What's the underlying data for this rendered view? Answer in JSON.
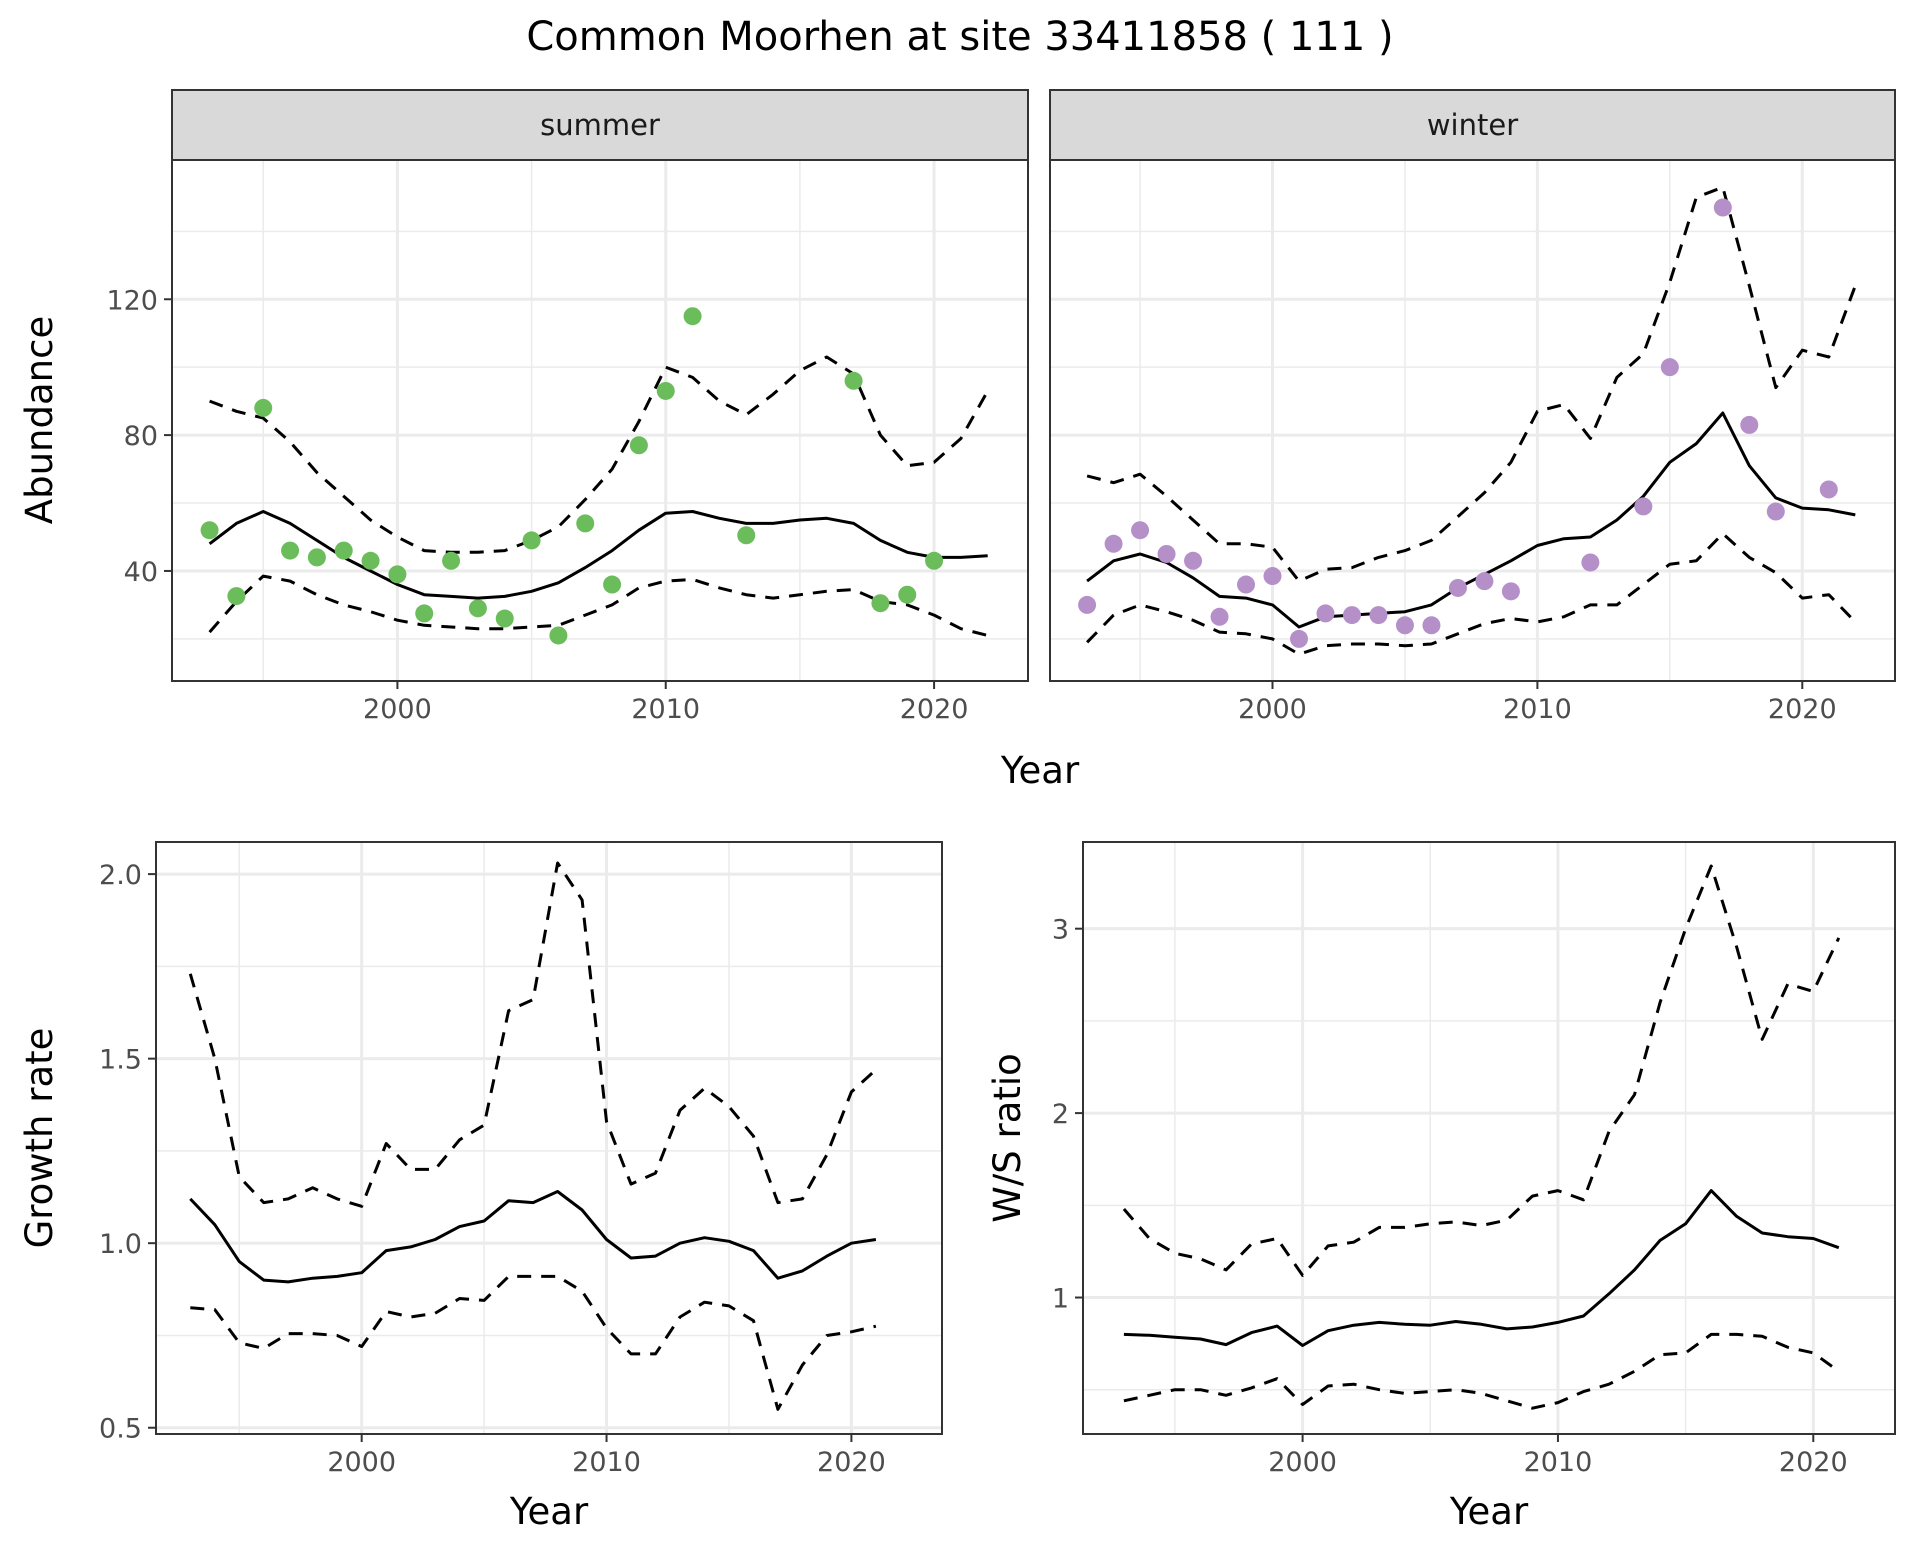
{
  "title": "Common Moorhen at site 33411858 ( 111 )",
  "colors": {
    "summer": "#6BBD5B",
    "winter": "#B58FC8",
    "line": "#000000",
    "strip": "#D9D9D9",
    "grid": "#EBEBEB"
  },
  "chart_data": [
    {
      "type": "line",
      "panel": "summer",
      "strip_label": "summer",
      "xlabel": "Year",
      "ylabel": "Abundance",
      "xlim": [
        1991.6,
        2023.5
      ],
      "ylim": [
        7.6,
        161
      ],
      "xticks": [
        2000,
        2010,
        2020
      ],
      "yticks": [
        40,
        80,
        120
      ],
      "grid": true,
      "x": [
        1993,
        1994,
        1995,
        1996,
        1997,
        1998,
        1999,
        2000,
        2001,
        2002,
        2003,
        2004,
        2005,
        2006,
        2007,
        2008,
        2009,
        2010,
        2011,
        2012,
        2013,
        2014,
        2015,
        2016,
        2017,
        2018,
        2019,
        2020,
        2021,
        2022
      ],
      "series": [
        {
          "name": "mean",
          "style": "solid",
          "values": [
            48,
            54,
            57.5,
            54,
            49,
            44,
            40,
            36,
            33,
            32.5,
            32,
            32.5,
            34,
            36.5,
            41,
            46,
            52,
            57,
            57.5,
            55.5,
            54,
            54,
            55,
            55.5,
            54,
            49,
            45.5,
            44,
            44,
            44.5
          ]
        },
        {
          "name": "upper",
          "style": "dashed",
          "values": [
            90,
            87,
            85,
            78,
            69,
            62,
            55,
            50,
            46,
            45.5,
            45.5,
            46,
            49,
            53,
            61,
            70,
            84,
            100,
            97,
            90,
            86,
            92,
            99,
            103,
            98,
            80,
            71,
            72,
            79,
            93
          ]
        },
        {
          "name": "lower",
          "style": "dashed",
          "values": [
            22,
            31,
            38.5,
            37,
            33,
            30,
            28,
            25.5,
            24,
            23.5,
            23,
            23,
            23.5,
            24,
            27,
            30,
            35,
            37,
            37.5,
            35,
            33,
            32,
            33,
            34,
            34.5,
            31,
            30,
            27,
            23,
            21
          ]
        }
      ],
      "points": {
        "x": [
          1993,
          1994,
          1995,
          1996,
          1997,
          1998,
          1999,
          2000,
          2001,
          2002,
          2003,
          2004,
          2005,
          2006,
          2007,
          2008,
          2009,
          2010,
          2011,
          2013,
          2017,
          2018,
          2019,
          2020
        ],
        "y": [
          52,
          32.6,
          88,
          46,
          44,
          46,
          43,
          39,
          27.5,
          43,
          29,
          26,
          49,
          21,
          54,
          36,
          77,
          93,
          115,
          50.5,
          96,
          30.5,
          33,
          43
        ]
      }
    },
    {
      "type": "line",
      "panel": "winter",
      "strip_label": "winter",
      "xlabel": "Year",
      "ylabel": "Abundance",
      "xlim": [
        1991.6,
        2023.5
      ],
      "ylim": [
        7.6,
        161
      ],
      "xticks": [
        2000,
        2010,
        2020
      ],
      "yticks": [
        40,
        80,
        120
      ],
      "grid": true,
      "x": [
        1993,
        1994,
        1995,
        1996,
        1997,
        1998,
        1999,
        2000,
        2001,
        2002,
        2003,
        2004,
        2005,
        2006,
        2007,
        2008,
        2009,
        2010,
        2011,
        2012,
        2013,
        2014,
        2015,
        2016,
        2017,
        2018,
        2019,
        2020,
        2021,
        2022
      ],
      "series": [
        {
          "name": "mean",
          "style": "solid",
          "values": [
            37,
            43,
            45,
            42.5,
            38,
            32.5,
            32,
            30,
            23.5,
            26.5,
            27,
            27.5,
            28,
            30,
            35,
            39,
            43,
            47.5,
            49.5,
            50,
            55,
            62,
            72,
            77.5,
            86.5,
            71,
            61.5,
            58.5,
            58,
            56.5
          ]
        },
        {
          "name": "upper",
          "style": "dashed",
          "values": [
            68,
            66,
            68.5,
            62,
            55,
            48,
            48,
            47,
            37,
            40.5,
            41,
            44,
            46,
            49,
            56,
            63,
            72,
            87,
            89,
            79,
            97,
            104,
            125,
            150,
            153,
            124,
            94,
            105,
            103,
            124
          ]
        },
        {
          "name": "lower",
          "style": "dashed",
          "values": [
            19,
            27,
            30,
            28,
            25.5,
            22,
            21.5,
            20,
            15.5,
            18,
            18.5,
            18.5,
            18,
            18.5,
            21.5,
            24.5,
            26,
            25,
            26.5,
            30,
            30,
            36,
            42,
            43,
            51,
            44,
            39.5,
            32,
            33,
            25
          ]
        }
      ],
      "points": {
        "x": [
          1993,
          1994,
          1995,
          1996,
          1997,
          1998,
          1999,
          2000,
          2001,
          2002,
          2003,
          2004,
          2005,
          2006,
          2007,
          2008,
          2009,
          2012,
          2014,
          2015,
          2017,
          2018,
          2019,
          2021
        ],
        "y": [
          30,
          48,
          52,
          45,
          43,
          26.5,
          36,
          38.5,
          20,
          27.5,
          27,
          27,
          24,
          24,
          35,
          37,
          34,
          42.5,
          59,
          100,
          147,
          83,
          57.5,
          64
        ]
      }
    },
    {
      "type": "line",
      "panel": "growth",
      "xlabel": "Year",
      "ylabel": "Growth rate",
      "xlim": [
        1991.6,
        2023.7
      ],
      "ylim": [
        0.483,
        2.087
      ],
      "xticks": [
        2000,
        2010,
        2020
      ],
      "yticks": [
        0.5,
        1.0,
        1.5,
        2.0
      ],
      "ytick_labels": [
        "0.5",
        "1.0",
        "1.5",
        "2.0"
      ],
      "grid": true,
      "x": [
        1993,
        1994,
        1995,
        1996,
        1997,
        1998,
        1999,
        2000,
        2001,
        2002,
        2003,
        2004,
        2005,
        2006,
        2007,
        2008,
        2009,
        2010,
        2011,
        2012,
        2013,
        2014,
        2015,
        2016,
        2017,
        2018,
        2019,
        2020,
        2021
      ],
      "series": [
        {
          "name": "mean",
          "style": "solid",
          "values": [
            1.12,
            1.05,
            0.95,
            0.9,
            0.895,
            0.905,
            0.91,
            0.92,
            0.98,
            0.99,
            1.01,
            1.045,
            1.06,
            1.115,
            1.11,
            1.14,
            1.09,
            1.01,
            0.96,
            0.965,
            1.0,
            1.015,
            1.005,
            0.98,
            0.905,
            0.925,
            0.965,
            1.0,
            1.01
          ]
        },
        {
          "name": "upper",
          "style": "dashed",
          "values": [
            1.73,
            1.5,
            1.18,
            1.11,
            1.12,
            1.15,
            1.12,
            1.1,
            1.27,
            1.2,
            1.2,
            1.28,
            1.32,
            1.63,
            1.66,
            2.03,
            1.93,
            1.33,
            1.16,
            1.19,
            1.36,
            1.42,
            1.37,
            1.29,
            1.11,
            1.12,
            1.24,
            1.41,
            1.47
          ]
        },
        {
          "name": "lower",
          "style": "dashed",
          "values": [
            0.825,
            0.82,
            0.73,
            0.715,
            0.755,
            0.755,
            0.75,
            0.72,
            0.815,
            0.8,
            0.81,
            0.85,
            0.845,
            0.91,
            0.91,
            0.91,
            0.87,
            0.77,
            0.7,
            0.7,
            0.8,
            0.84,
            0.83,
            0.79,
            0.55,
            0.67,
            0.75,
            0.76,
            0.775
          ]
        }
      ]
    },
    {
      "type": "line",
      "panel": "ratio",
      "xlabel": "Year",
      "ylabel": "W/S ratio",
      "xlim": [
        1991.4,
        2023.2
      ],
      "ylim": [
        0.26,
        3.47
      ],
      "xticks": [
        2000,
        2010,
        2020
      ],
      "yticks": [
        1,
        2,
        3
      ],
      "ytick_labels": [
        "1",
        "2",
        "3"
      ],
      "grid": true,
      "x": [
        1993,
        1994,
        1995,
        1996,
        1997,
        1998,
        1999,
        2000,
        2001,
        2002,
        2003,
        2004,
        2005,
        2006,
        2007,
        2008,
        2009,
        2010,
        2011,
        2012,
        2013,
        2014,
        2015,
        2016,
        2017,
        2018,
        2019,
        2020,
        2021
      ],
      "series": [
        {
          "name": "mean",
          "style": "solid",
          "values": [
            0.8,
            0.795,
            0.785,
            0.775,
            0.745,
            0.81,
            0.845,
            0.74,
            0.82,
            0.85,
            0.865,
            0.855,
            0.85,
            0.87,
            0.855,
            0.83,
            0.84,
            0.865,
            0.9,
            1.02,
            1.15,
            1.31,
            1.4,
            1.58,
            1.44,
            1.35,
            1.33,
            1.32,
            1.27
          ]
        },
        {
          "name": "upper",
          "style": "dashed",
          "values": [
            1.48,
            1.32,
            1.24,
            1.21,
            1.15,
            1.29,
            1.32,
            1.12,
            1.28,
            1.3,
            1.38,
            1.38,
            1.4,
            1.41,
            1.39,
            1.42,
            1.55,
            1.58,
            1.53,
            1.9,
            2.1,
            2.6,
            3.0,
            3.34,
            2.9,
            2.4,
            2.7,
            2.66,
            2.95
          ]
        },
        {
          "name": "lower",
          "style": "dashed",
          "values": [
            0.44,
            0.47,
            0.5,
            0.5,
            0.47,
            0.51,
            0.56,
            0.42,
            0.52,
            0.53,
            0.5,
            0.48,
            0.49,
            0.5,
            0.48,
            0.44,
            0.4,
            0.43,
            0.49,
            0.53,
            0.6,
            0.69,
            0.7,
            0.8,
            0.8,
            0.79,
            0.73,
            0.7,
            0.6
          ]
        }
      ]
    }
  ]
}
